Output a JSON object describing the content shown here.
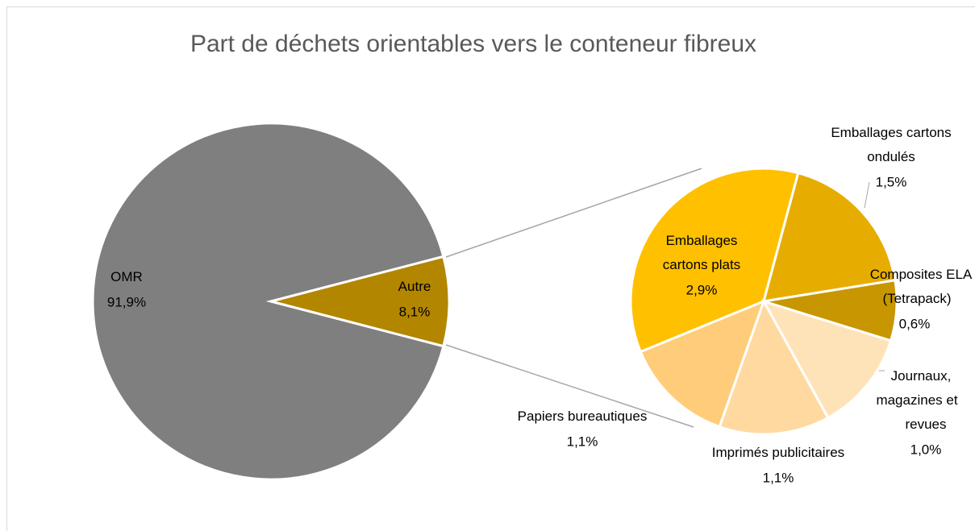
{
  "chart_data": {
    "type": "pie",
    "title": "Part de déchets orientables vers le conteneur fibreux",
    "categories": [
      "OMR",
      "Autre"
    ],
    "values": [
      91.9,
      8.1
    ],
    "value_labels": [
      "91,9%",
      "8,1%"
    ],
    "colors": [
      "#7f7f7f",
      "#b38600"
    ],
    "breakdown": {
      "categories": [
        "Emballages cartons plats",
        "Emballages cartons ondulés",
        "Composites ELA (Tetrapack)",
        "Journaux, magazines et revues",
        "Imprimés publicitaires",
        "Papiers bureautiques"
      ],
      "values": [
        2.9,
        1.5,
        0.6,
        1.0,
        1.1,
        1.1
      ],
      "value_labels": [
        "2,9%",
        "1,5%",
        "0,6%",
        "1,0%",
        "1,1%",
        "1,1%"
      ],
      "colors": [
        "#ffc000",
        "#e6ad00",
        "#c79600",
        "#ffe3b8",
        "#ffd9a0",
        "#ffcc7a"
      ]
    }
  }
}
